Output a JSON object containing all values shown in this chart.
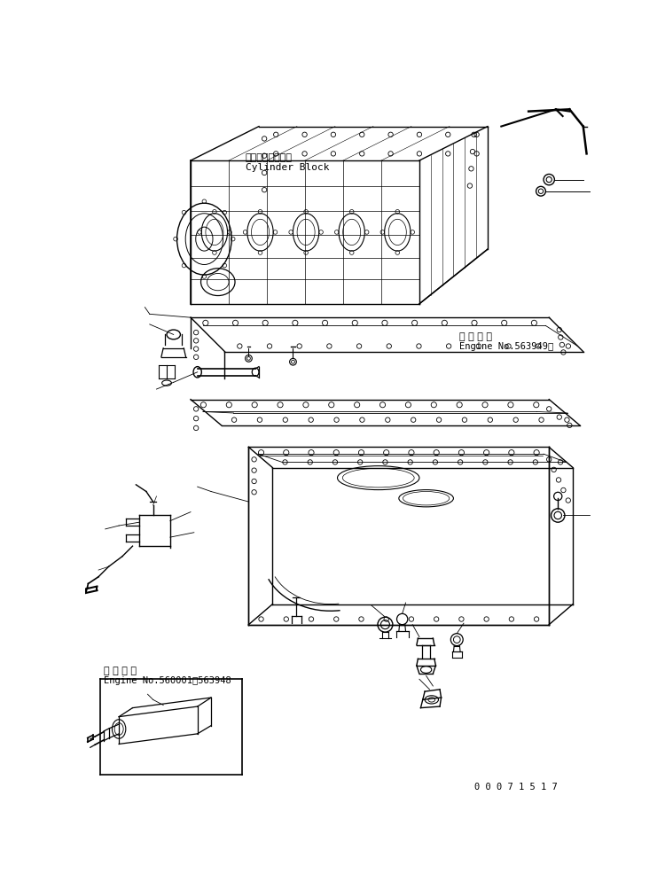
{
  "bg_color": "#ffffff",
  "line_color": "#000000",
  "label1_jp": "適 用 号 機",
  "label1_en": "Engine No.563949～",
  "label2_jp": "適 用 号 機",
  "label2_en": "Engine No.560001～563948",
  "cyl_label_jp": "シリンダブロック",
  "cyl_label_en": "Cylinder Block",
  "doc_number": "0 0 0 7 1 5 1 7",
  "fig_width": 7.5,
  "fig_height": 10.04,
  "dpi": 100
}
